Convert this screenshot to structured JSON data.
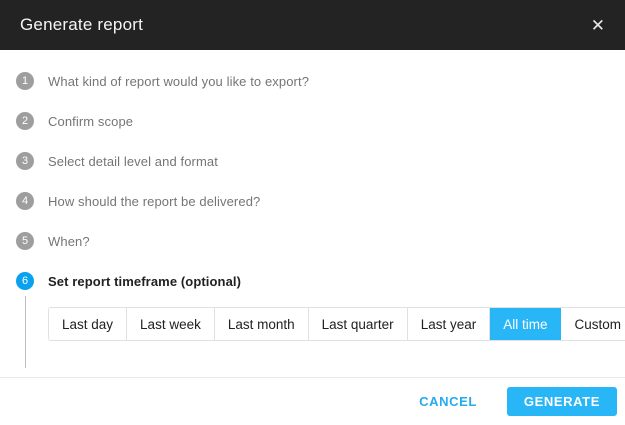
{
  "dialog": {
    "title": "Generate report",
    "close_icon": "✕"
  },
  "steps": [
    {
      "number": "1",
      "label": "What kind of report would you like to export?",
      "active": false
    },
    {
      "number": "2",
      "label": "Confirm scope",
      "active": false
    },
    {
      "number": "3",
      "label": "Select detail level and format",
      "active": false
    },
    {
      "number": "4",
      "label": "How should the report be delivered?",
      "active": false
    },
    {
      "number": "5",
      "label": "When?",
      "active": false
    },
    {
      "number": "6",
      "label": "Set report timeframe (optional)",
      "active": true
    }
  ],
  "timeframe": {
    "options": [
      {
        "label": "Last day",
        "selected": false
      },
      {
        "label": "Last week",
        "selected": false
      },
      {
        "label": "Last month",
        "selected": false
      },
      {
        "label": "Last quarter",
        "selected": false
      },
      {
        "label": "Last year",
        "selected": false
      },
      {
        "label": "All time",
        "selected": true
      },
      {
        "label": "Custom",
        "selected": false
      }
    ]
  },
  "footer": {
    "cancel_label": "CANCEL",
    "generate_label": "GENERATE"
  },
  "colors": {
    "accent": "#29b6f6",
    "active_step": "#0aa2ef",
    "header_bg": "#232323",
    "inactive_step": "#9e9e9e"
  }
}
